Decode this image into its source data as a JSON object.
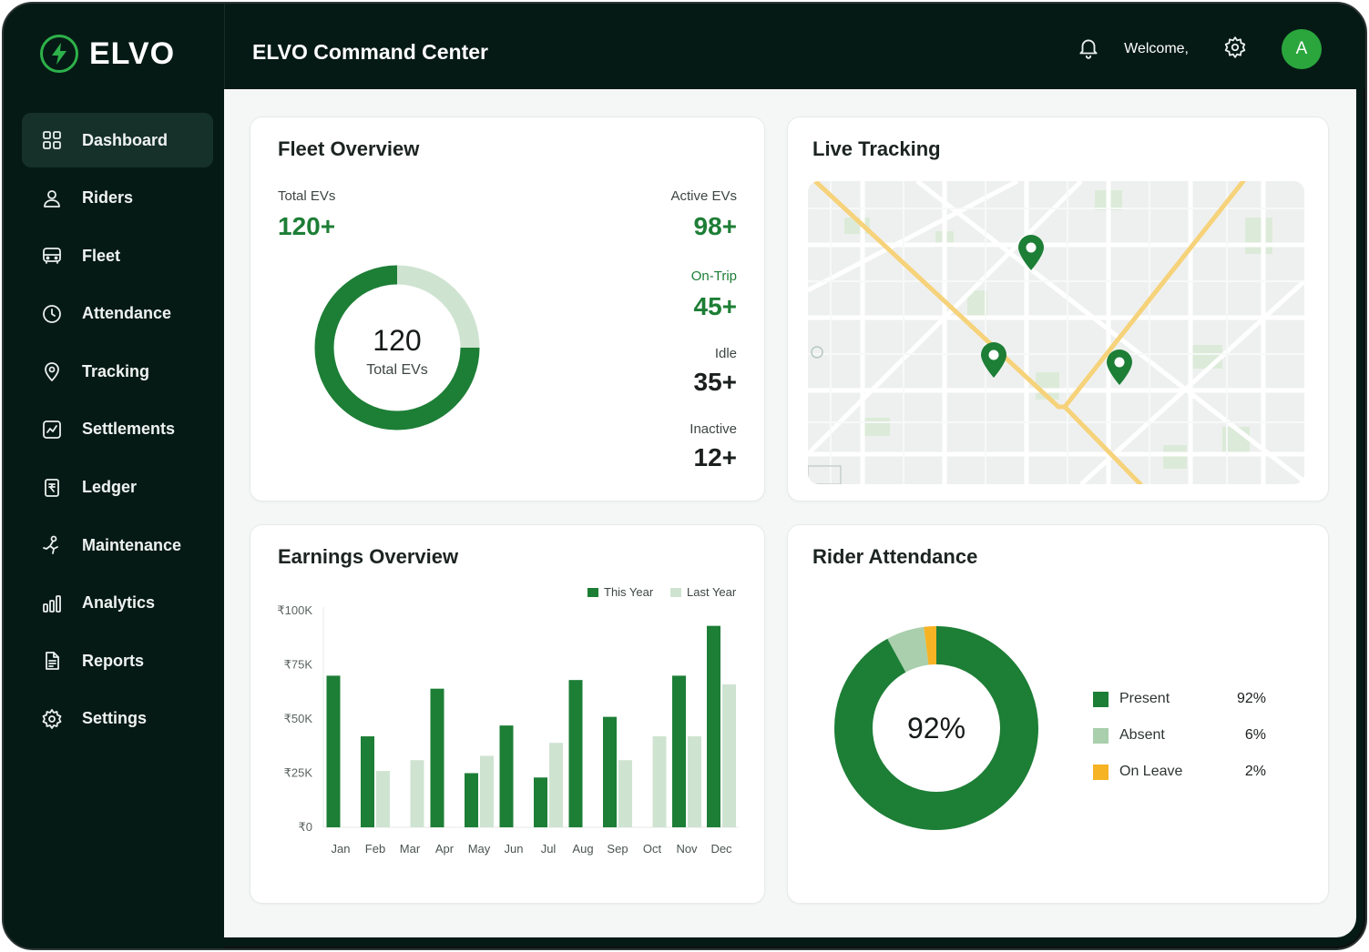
{
  "app": {
    "name": "ELVO",
    "title": "ELVO Command Center"
  },
  "header": {
    "welcome": "Welcome,",
    "avatar_initial": "A"
  },
  "sidebar": {
    "items": [
      {
        "label": "Dashboard",
        "icon": "grid-icon",
        "active": true
      },
      {
        "label": "Riders",
        "icon": "user-icon"
      },
      {
        "label": "Fleet",
        "icon": "vehicle-icon"
      },
      {
        "label": "Attendance",
        "icon": "clock-icon"
      },
      {
        "label": "Tracking",
        "icon": "location-pin-icon"
      },
      {
        "label": "Settlements",
        "icon": "chart-card-icon"
      },
      {
        "label": "Ledger",
        "icon": "rupee-document-icon"
      },
      {
        "label": "Maintenance",
        "icon": "wrench-icon"
      },
      {
        "label": "Analytics",
        "icon": "bar-chart-icon"
      },
      {
        "label": "Reports",
        "icon": "report-icon"
      },
      {
        "label": "Settings",
        "icon": "gear-icon"
      }
    ]
  },
  "fleet": {
    "title": "Fleet Overview",
    "total_label": "Total EVs",
    "total_value": "120+",
    "donut_value": "120",
    "donut_label": "Total EVs",
    "active_label": "Active EVs",
    "active_value": "98+",
    "ontrip_label": "On-Trip",
    "ontrip_value": "45+",
    "idle_label": "Idle",
    "idle_value": "35+",
    "inactive_label": "Inactive",
    "inactive_value": "12+",
    "donut_fraction": 0.75
  },
  "tracking": {
    "title": "Live Tracking"
  },
  "earnings": {
    "title": "Earnings Overview",
    "legend_this": "This Year",
    "legend_last": "Last Year"
  },
  "attendance": {
    "title": "Rider Attendance",
    "center_value": "92%",
    "rows": [
      {
        "label": "Present",
        "value": "92%",
        "color": "#1d7e36"
      },
      {
        "label": "Absent",
        "value": "6%",
        "color": "#a9cfac"
      },
      {
        "label": "On Leave",
        "value": "2%",
        "color": "#f6b324"
      }
    ]
  },
  "colors": {
    "accent": "#1d7e36",
    "accent_light": "#cfe3d1",
    "sidebar_bg": "#061a15",
    "amber": "#f6b324"
  },
  "chart_data": [
    {
      "type": "bar",
      "title": "Earnings Overview",
      "categories": [
        "Jan",
        "Feb",
        "Mar",
        "Apr",
        "May",
        "Jun",
        "Jul",
        "Aug",
        "Sep",
        "Oct",
        "Nov",
        "Dec"
      ],
      "series": [
        {
          "name": "This Year",
          "values": [
            70000,
            42000,
            0,
            64000,
            25000,
            47000,
            23000,
            68000,
            51000,
            0,
            70000,
            93000
          ]
        },
        {
          "name": "Last Year",
          "values": [
            0,
            26000,
            31000,
            0,
            33000,
            0,
            39000,
            0,
            31000,
            42000,
            42000,
            66000
          ]
        }
      ],
      "yticks": [
        "₹0",
        "₹25K",
        "₹50K",
        "₹75K",
        "₹100K"
      ],
      "ylim": [
        0,
        100000
      ],
      "legend": "top-right",
      "grid": false
    },
    {
      "type": "pie",
      "title": "Rider Attendance",
      "categories": [
        "Present",
        "Absent",
        "On Leave"
      ],
      "values": [
        92,
        6,
        2
      ]
    }
  ]
}
